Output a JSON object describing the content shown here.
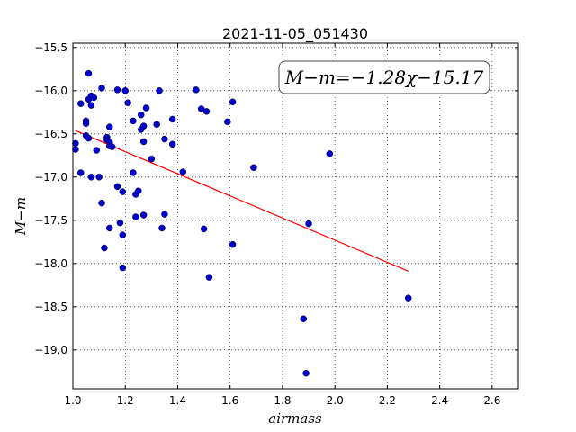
{
  "chart_data": {
    "type": "scatter",
    "title": "2021-11-05_051430",
    "xlabel": "airmass",
    "ylabel": "M−m",
    "xlim": [
      1.0,
      2.7
    ],
    "ylim": [
      -19.45,
      -15.45
    ],
    "y_inverted": true,
    "grid": true,
    "x_ticks": [
      1.0,
      1.2,
      1.4,
      1.6,
      1.8,
      2.0,
      2.2,
      2.4,
      2.6
    ],
    "x_tick_labels": [
      "1.0",
      "1.2",
      "1.4",
      "1.6",
      "1.8",
      "2.0",
      "2.2",
      "2.4",
      "2.6"
    ],
    "y_ticks": [
      -15.5,
      -16.0,
      -16.5,
      -17.0,
      -17.5,
      -18.0,
      -18.5,
      -19.0
    ],
    "y_tick_labels": [
      "−15.5",
      "−16.0",
      "−16.5",
      "−17.0",
      "−17.5",
      "−18.0",
      "−18.5",
      "−19.0"
    ],
    "annotation": "M−m=−1.28χ−15.17",
    "point_color": "#0000cc",
    "fit_color": "#ff0000",
    "fit_line": {
      "slope": -1.28,
      "intercept": -15.17,
      "x_range": [
        1.01,
        2.28
      ]
    },
    "points": [
      [
        1.01,
        -16.61
      ],
      [
        1.01,
        -16.68
      ],
      [
        1.03,
        -16.15
      ],
      [
        1.03,
        -16.95
      ],
      [
        1.05,
        -16.35
      ],
      [
        1.05,
        -16.38
      ],
      [
        1.05,
        -16.52
      ],
      [
        1.06,
        -15.8
      ],
      [
        1.06,
        -16.1
      ],
      [
        1.06,
        -16.55
      ],
      [
        1.07,
        -16.06
      ],
      [
        1.07,
        -16.17
      ],
      [
        1.07,
        -17.0
      ],
      [
        1.08,
        -16.08
      ],
      [
        1.09,
        -16.69
      ],
      [
        1.1,
        -17.0
      ],
      [
        1.11,
        -17.3
      ],
      [
        1.11,
        -15.97
      ],
      [
        1.12,
        -17.82
      ],
      [
        1.13,
        -16.54
      ],
      [
        1.13,
        -16.57
      ],
      [
        1.14,
        -16.42
      ],
      [
        1.14,
        -16.6
      ],
      [
        1.14,
        -16.64
      ],
      [
        1.14,
        -17.59
      ],
      [
        1.15,
        -16.65
      ],
      [
        1.17,
        -15.99
      ],
      [
        1.17,
        -17.11
      ],
      [
        1.18,
        -17.53
      ],
      [
        1.19,
        -17.17
      ],
      [
        1.19,
        -17.67
      ],
      [
        1.19,
        -18.05
      ],
      [
        1.2,
        -16.0
      ],
      [
        1.21,
        -16.14
      ],
      [
        1.23,
        -16.95
      ],
      [
        1.23,
        -16.35
      ],
      [
        1.24,
        -17.2
      ],
      [
        1.24,
        -17.46
      ],
      [
        1.25,
        -17.16
      ],
      [
        1.26,
        -16.28
      ],
      [
        1.26,
        -16.45
      ],
      [
        1.27,
        -16.41
      ],
      [
        1.27,
        -16.59
      ],
      [
        1.27,
        -17.44
      ],
      [
        1.28,
        -16.2
      ],
      [
        1.3,
        -16.79
      ],
      [
        1.32,
        -16.39
      ],
      [
        1.33,
        -16.0
      ],
      [
        1.34,
        -17.59
      ],
      [
        1.35,
        -16.56
      ],
      [
        1.35,
        -17.43
      ],
      [
        1.38,
        -16.62
      ],
      [
        1.38,
        -16.33
      ],
      [
        1.42,
        -16.94
      ],
      [
        1.47,
        -15.99
      ],
      [
        1.49,
        -16.21
      ],
      [
        1.5,
        -17.6
      ],
      [
        1.51,
        -16.24
      ],
      [
        1.52,
        -18.16
      ],
      [
        1.59,
        -16.36
      ],
      [
        1.61,
        -16.13
      ],
      [
        1.61,
        -17.78
      ],
      [
        1.69,
        -16.89
      ],
      [
        1.88,
        -18.64
      ],
      [
        1.89,
        -19.27
      ],
      [
        1.9,
        -17.54
      ],
      [
        1.98,
        -16.73
      ],
      [
        2.28,
        -18.4
      ]
    ]
  }
}
